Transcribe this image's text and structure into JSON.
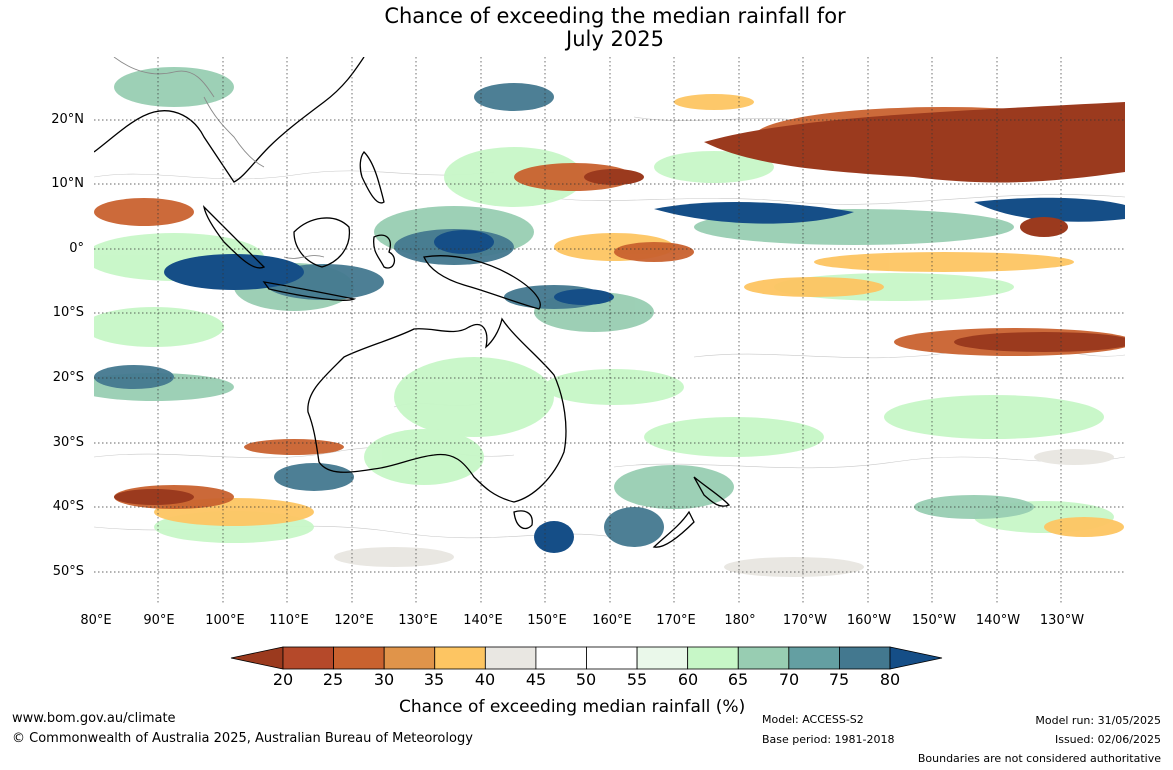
{
  "title": {
    "line1": "Chance of exceeding the median rainfall for",
    "line2": "July 2025"
  },
  "map": {
    "lat_labels": [
      "20°N",
      "10°N",
      "0°",
      "10°S",
      "20°S",
      "30°S",
      "40°S",
      "50°S"
    ],
    "lon_labels": [
      "80°E",
      "90°E",
      "100°E",
      "110°E",
      "120°E",
      "130°E",
      "140°E",
      "150°E",
      "160°E",
      "170°E",
      "180°",
      "170°W",
      "160°W",
      "150°W",
      "140°W",
      "130°W"
    ]
  },
  "colorbar": {
    "label": "Chance of exceeding median rainfall (%)",
    "ticks": [
      "20",
      "25",
      "30",
      "35",
      "40",
      "45",
      "50",
      "55",
      "60",
      "65",
      "70",
      "75",
      "80"
    ],
    "colors": [
      "#9b3a1e",
      "#b5492a",
      "#c9622f",
      "#e0944a",
      "#fdc562",
      "#e9e7e2",
      "#ffffff",
      "#ffffff",
      "#eaf8ea",
      "#c7f7c7",
      "#98cdb2",
      "#649fa2",
      "#43788f",
      "#154e87"
    ]
  },
  "footer": {
    "website": "www.bom.gov.au/climate",
    "copyright": "© Commonwealth of Australia 2025, Australian Bureau of Meteorology",
    "model": "Model: ACCESS-S2",
    "base_period": "Base period: 1981-2018",
    "model_run": "Model run: 31/05/2025",
    "issued": "Issued: 02/06/2025",
    "disclaimer": "Boundaries are not considered authoritative"
  }
}
